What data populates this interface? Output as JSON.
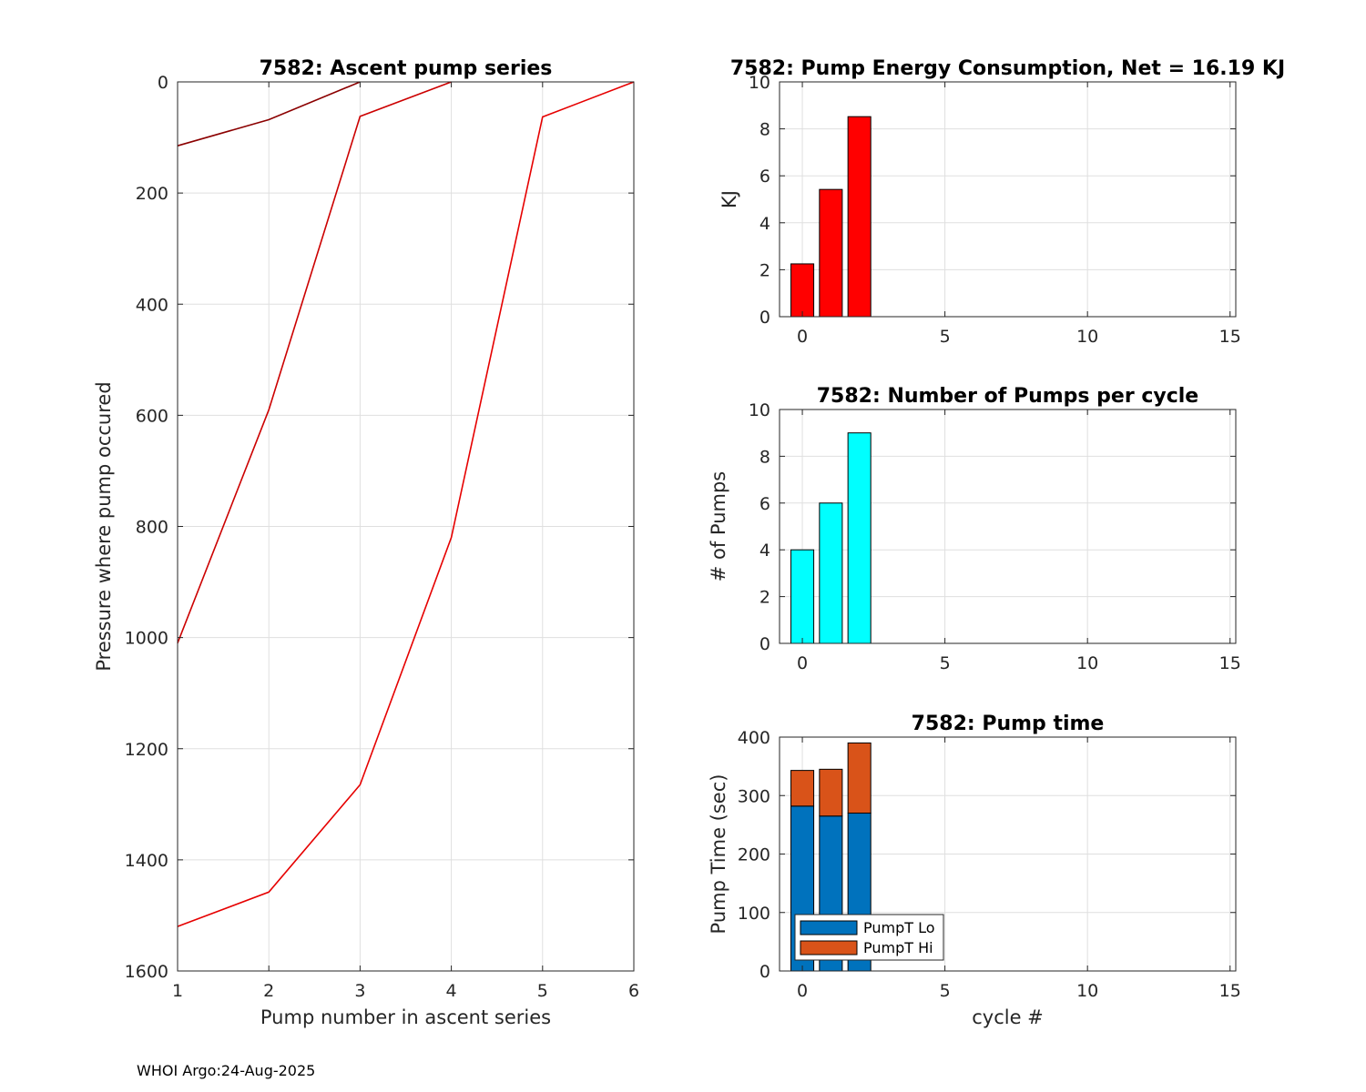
{
  "footer": "WHOI Argo:24-Aug-2025",
  "chart_data": [
    {
      "id": "ascent",
      "type": "line",
      "title": "7582: Ascent pump series",
      "xlabel": "Pump number in ascent series",
      "ylabel": "Pressure where pump occured",
      "xlim": [
        1,
        6
      ],
      "ylim": [
        0,
        1600
      ],
      "y_reversed": true,
      "xticks": [
        1,
        2,
        3,
        4,
        5,
        6
      ],
      "yticks": [
        0,
        200,
        400,
        600,
        800,
        1000,
        1200,
        1400,
        1600
      ],
      "grid": true,
      "series": [
        {
          "x": [
            1,
            2,
            3
          ],
          "y": [
            115,
            68,
            0
          ],
          "color": "#8b0000"
        },
        {
          "x": [
            1,
            2,
            3,
            4
          ],
          "y": [
            1010,
            590,
            62,
            0
          ],
          "color": "#cc0000"
        },
        {
          "x": [
            1,
            2,
            3,
            4,
            5,
            6
          ],
          "y": [
            1520,
            1458,
            1265,
            820,
            63,
            0
          ],
          "color": "#e60000"
        }
      ]
    },
    {
      "id": "energy",
      "type": "bar",
      "title": "7582: Pump Energy Consumption,  Net =  16.19 KJ",
      "xlabel": "",
      "ylabel": "KJ",
      "xlim": [
        -0.8,
        15.2
      ],
      "ylim": [
        0,
        10
      ],
      "xticks": [
        0,
        5,
        10,
        15
      ],
      "yticks": [
        0,
        2,
        4,
        6,
        8,
        10
      ],
      "grid": true,
      "x": [
        0,
        1,
        2
      ],
      "values": [
        2.25,
        5.42,
        8.52
      ],
      "color": "#ff0000"
    },
    {
      "id": "pumps",
      "type": "bar",
      "title": "7582: Number of Pumps per cycle",
      "xlabel": "",
      "ylabel": "# of Pumps",
      "xlim": [
        -0.8,
        15.2
      ],
      "ylim": [
        0,
        10
      ],
      "xticks": [
        0,
        5,
        10,
        15
      ],
      "yticks": [
        0,
        2,
        4,
        6,
        8,
        10
      ],
      "grid": true,
      "x": [
        0,
        1,
        2
      ],
      "values": [
        4,
        6,
        9
      ],
      "color": "#00ffff"
    },
    {
      "id": "pumptime",
      "type": "bar",
      "stacked": true,
      "title": "7582: Pump time",
      "xlabel": "cycle #",
      "ylabel": "Pump Time (sec)",
      "xlim": [
        -0.8,
        15.2
      ],
      "ylim": [
        0,
        400
      ],
      "xticks": [
        0,
        5,
        10,
        15
      ],
      "yticks": [
        0,
        100,
        200,
        300,
        400
      ],
      "grid": true,
      "legend": "bottom-left",
      "x": [
        0,
        1,
        2
      ],
      "series": [
        {
          "name": "PumpT Lo",
          "values": [
            282,
            265,
            270
          ],
          "color": "#0072bd"
        },
        {
          "name": "PumpT Hi",
          "values": [
            61,
            80,
            120
          ],
          "color": "#d95319"
        }
      ]
    }
  ]
}
